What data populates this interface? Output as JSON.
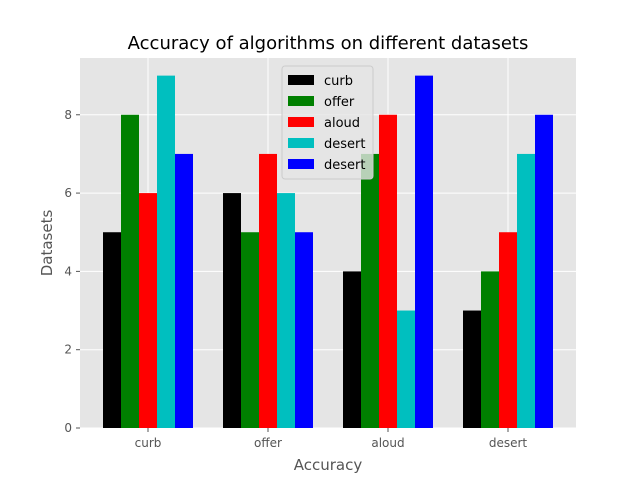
{
  "chart_data": {
    "type": "bar",
    "title": "Accuracy of algorithms on different datasets",
    "xlabel": "Accuracy",
    "ylabel": "Datasets",
    "categories": [
      "curb",
      "offer",
      "aloud",
      "desert"
    ],
    "ylim": [
      0,
      9.45
    ],
    "yticks": [
      0,
      2,
      4,
      6,
      8
    ],
    "grid": true,
    "legend_position": "top-center",
    "background": "#e5e5e5",
    "series": [
      {
        "name": "curb",
        "color": "#000000",
        "values": [
          5,
          6,
          4,
          3
        ]
      },
      {
        "name": "offer",
        "color": "#008000",
        "values": [
          8,
          5,
          7,
          4
        ]
      },
      {
        "name": "aloud",
        "color": "#ff0000",
        "values": [
          6,
          7,
          8,
          5
        ]
      },
      {
        "name": "desert",
        "color": "#00bfbf",
        "values": [
          9,
          6,
          3,
          7
        ]
      },
      {
        "name": "desert",
        "color": "#0000ff",
        "values": [
          7,
          5,
          9,
          8
        ]
      }
    ]
  }
}
